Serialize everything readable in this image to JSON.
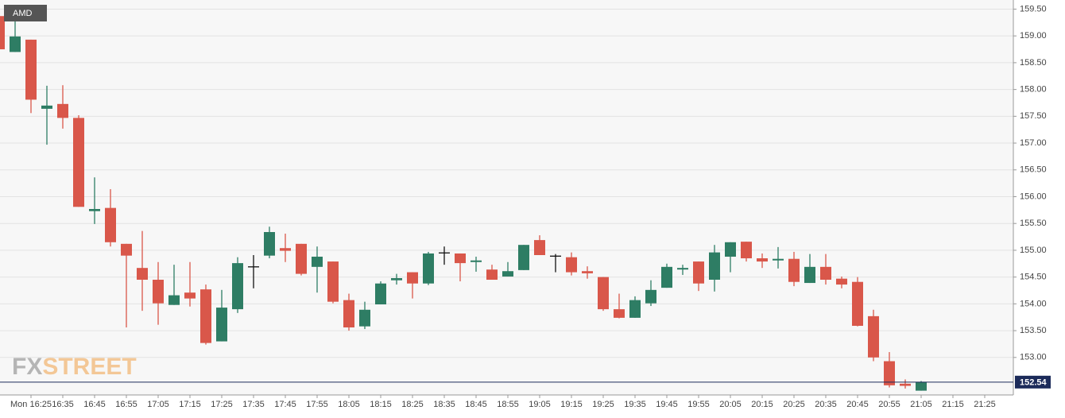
{
  "chart_data": {
    "type": "candlestick",
    "ticker": "AMD",
    "watermark": [
      "FX",
      "STREET"
    ],
    "categories": [
      null,
      null,
      "Mon 16:25",
      null,
      "16:35",
      null,
      "16:45",
      null,
      "16:55",
      null,
      "17:05",
      null,
      "17:15",
      null,
      "17:25",
      null,
      "17:35",
      null,
      "17:45",
      null,
      "17:55",
      null,
      "18:05",
      null,
      "18:15",
      null,
      "18:25",
      null,
      "18:35",
      null,
      "18:45",
      null,
      "18:55",
      null,
      "19:05",
      null,
      "19:15",
      null,
      "19:25",
      null,
      "19:35",
      null,
      "19:45",
      null,
      "19:55",
      null,
      "20:05",
      null,
      "20:15",
      null,
      "20:25",
      null,
      "20:35",
      null,
      "20:45",
      null,
      "20:55",
      null,
      "21:05",
      null,
      "21:15",
      null,
      "21:25",
      null
    ],
    "open": [
      159.37,
      158.7,
      158.93,
      157.64,
      157.73,
      157.47,
      155.73,
      155.79,
      155.12,
      154.67,
      154.45,
      153.98,
      154.21,
      154.27,
      153.3,
      153.9,
      154.7,
      154.9,
      155.04,
      155.12,
      154.69,
      154.79,
      154.07,
      153.58,
      153.99,
      154.44,
      154.59,
      154.38,
      154.96,
      154.94,
      154.78,
      154.64,
      154.51,
      154.63,
      155.19,
      154.9,
      154.87,
      154.61,
      154.5,
      153.9,
      153.74,
      154.01,
      154.3,
      154.64,
      154.79,
      154.45,
      154.88,
      155.16,
      154.85,
      154.81,
      154.84,
      154.39,
      154.69,
      154.47,
      154.41,
      153.77,
      152.93,
      152.51,
      152.38,
      null,
      null,
      null,
      null,
      null
    ],
    "high": [
      159.5,
      159.34,
      158.93,
      158.07,
      158.08,
      157.52,
      156.36,
      156.14,
      155.12,
      155.36,
      154.78,
      154.73,
      154.78,
      154.36,
      154.26,
      154.87,
      154.91,
      155.44,
      155.31,
      155.12,
      155.07,
      154.79,
      154.19,
      154.04,
      154.42,
      154.56,
      154.59,
      154.97,
      155.07,
      154.94,
      154.88,
      154.73,
      154.78,
      155.1,
      155.28,
      154.93,
      154.96,
      154.7,
      154.5,
      154.19,
      154.14,
      154.44,
      154.75,
      154.73,
      154.79,
      155.1,
      155.15,
      155.16,
      154.94,
      155.06,
      154.97,
      154.93,
      154.93,
      154.51,
      154.5,
      153.89,
      153.1,
      152.59,
      152.56,
      null,
      null,
      null,
      null,
      null
    ],
    "low": [
      158.75,
      158.7,
      157.56,
      156.97,
      157.27,
      155.81,
      155.49,
      155.07,
      153.56,
      153.87,
      153.61,
      153.98,
      153.95,
      153.24,
      153.3,
      153.83,
      154.29,
      154.85,
      154.78,
      154.53,
      154.21,
      154.01,
      153.5,
      153.53,
      153.99,
      154.36,
      154.1,
      154.35,
      154.73,
      154.42,
      154.6,
      154.45,
      154.51,
      154.63,
      154.91,
      154.59,
      154.53,
      154.47,
      153.87,
      153.73,
      153.74,
      153.96,
      154.3,
      154.54,
      154.24,
      154.23,
      154.59,
      154.79,
      154.67,
      154.66,
      154.33,
      154.39,
      154.36,
      154.29,
      153.58,
      152.93,
      152.44,
      152.42,
      152.38,
      null,
      null,
      null,
      null,
      null
    ],
    "close": [
      158.75,
      158.99,
      157.81,
      157.7,
      157.47,
      155.81,
      155.77,
      155.15,
      154.9,
      154.45,
      154.01,
      154.16,
      154.1,
      153.27,
      153.93,
      154.76,
      154.7,
      155.34,
      154.99,
      154.56,
      154.88,
      154.04,
      153.56,
      153.89,
      154.38,
      154.48,
      154.38,
      154.94,
      154.96,
      154.76,
      154.81,
      154.45,
      154.61,
      155.1,
      154.91,
      154.9,
      154.59,
      154.57,
      153.9,
      153.74,
      154.07,
      154.26,
      154.69,
      154.67,
      154.38,
      154.96,
      155.15,
      154.85,
      154.79,
      154.84,
      154.41,
      154.69,
      154.45,
      154.36,
      153.59,
      153.0,
      152.48,
      152.47,
      152.54,
      null,
      null,
      null,
      null,
      null
    ],
    "up_color": "#2e7d64",
    "down_color": "#d9574a",
    "flat_color": "#111111",
    "last_price": 152.54,
    "last_price_color": "#1c2b5a",
    "ylim": [
      152.3,
      159.67
    ],
    "yticks": [
      {
        "value": 153.0,
        "label": "153.00"
      },
      {
        "value": 153.5,
        "label": "153.50"
      },
      {
        "value": 154.0,
        "label": "154.00"
      },
      {
        "value": 154.5,
        "label": "154.50"
      },
      {
        "value": 155.0,
        "label": "155.00"
      },
      {
        "value": 155.5,
        "label": "155.50"
      },
      {
        "value": 156.0,
        "label": "156.00"
      },
      {
        "value": 156.5,
        "label": "156.50"
      },
      {
        "value": 157.0,
        "label": "157.00"
      },
      {
        "value": 157.5,
        "label": "157.50"
      },
      {
        "value": 158.0,
        "label": "158.00"
      },
      {
        "value": 158.5,
        "label": "158.50"
      },
      {
        "value": 159.0,
        "label": "159.00"
      },
      {
        "value": 159.5,
        "label": "159.50"
      }
    ],
    "grid": true
  }
}
